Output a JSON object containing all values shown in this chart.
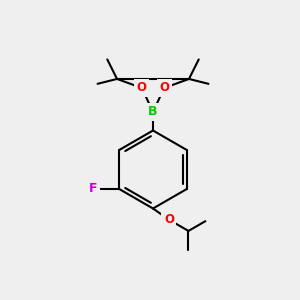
{
  "bg_color": "#efefef",
  "bond_color": "#000000",
  "B_color": "#00cc00",
  "O_color": "#ff0000",
  "F_color": "#cc00cc",
  "line_width": 1.5,
  "figsize": [
    3.0,
    3.0
  ],
  "dpi": 100,
  "xlim": [
    0,
    10
  ],
  "ylim": [
    0,
    10
  ]
}
